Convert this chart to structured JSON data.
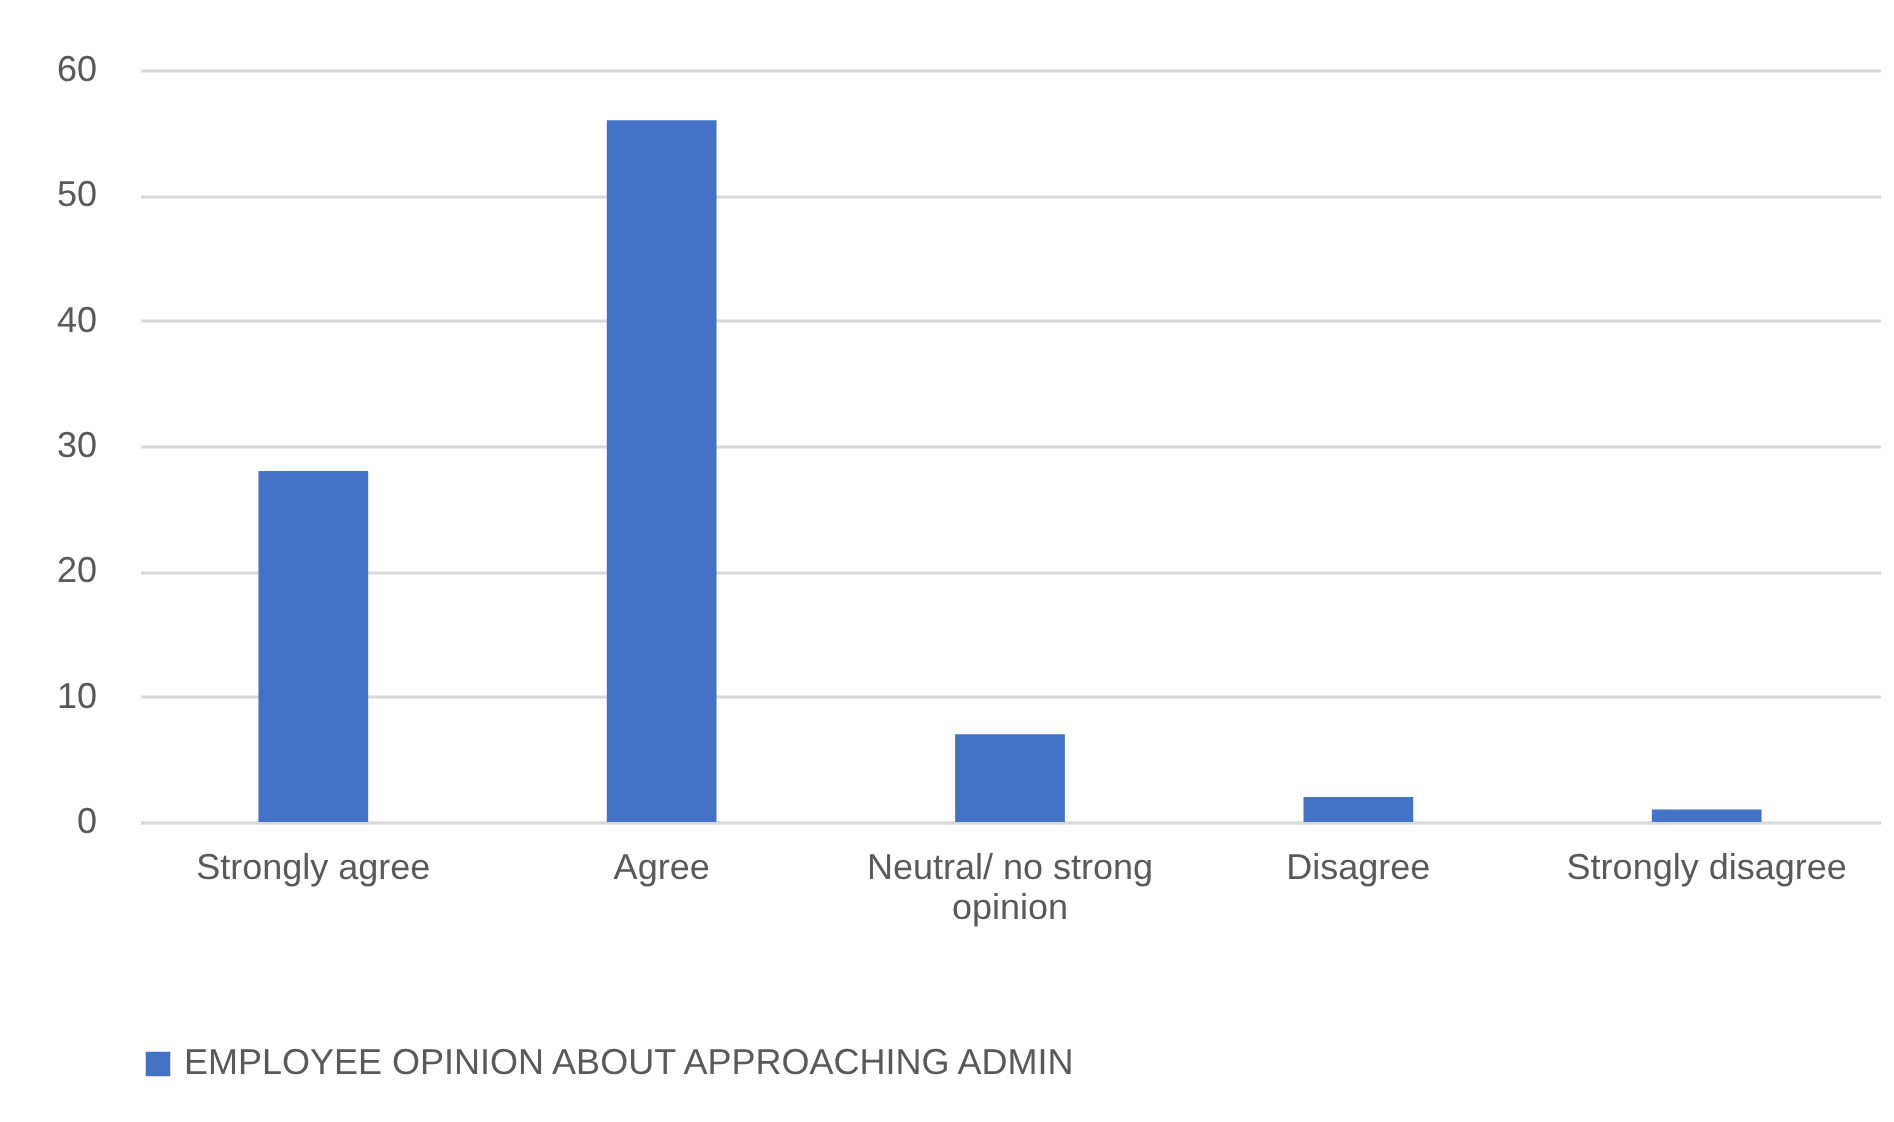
{
  "chart_data": {
    "type": "bar",
    "categories": [
      "Strongly agree",
      "Agree",
      "Neutral/ no strong opinion",
      "Disagree",
      "Strongly disagree"
    ],
    "series": [
      {
        "name": "EMPLOYEE OPINION ABOUT APPROACHING ADMIN",
        "color": "#4472c4",
        "values": [
          28,
          56,
          7,
          2,
          1
        ]
      }
    ],
    "ylim": [
      0,
      60
    ],
    "yticks": [
      0,
      10,
      20,
      30,
      40,
      50,
      60
    ],
    "grid": "y",
    "legend": "bottom"
  }
}
